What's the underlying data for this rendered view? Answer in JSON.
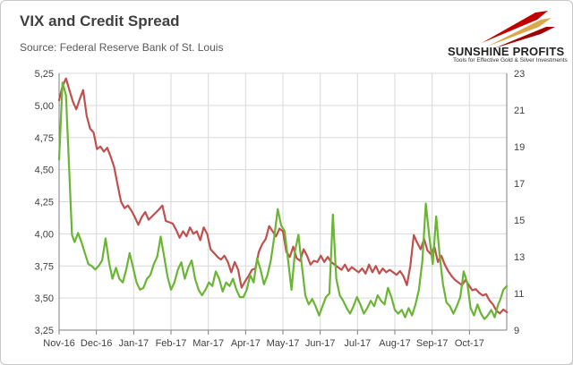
{
  "title": "VIX and Credit Spread",
  "subtitle": "Source: Federal Reserve Bank of St. Louis",
  "logo": {
    "name": "SUNSHINE PROFITS",
    "tagline": "Tools for Effective Gold & Silver Investments"
  },
  "colors": {
    "vix": "#6ab534",
    "credit_spread": "#c0504d",
    "grid": "#d9d9d9",
    "axis": "#7f7f7f"
  },
  "chart_data": {
    "type": "line",
    "x_ticks": [
      "Nov-16",
      "Dec-16",
      "Jan-17",
      "Feb-17",
      "Mar-17",
      "Apr-17",
      "May-17",
      "Jun-17",
      "Jul-17",
      "Aug-17",
      "Sep-17",
      "Oct-17"
    ],
    "y_left": {
      "ticks": [
        "3,25",
        "3,50",
        "3,75",
        "4,00",
        "4,25",
        "4,50",
        "4,75",
        "5,00",
        "5,25"
      ],
      "range": [
        3.25,
        5.25
      ]
    },
    "y_right": {
      "ticks": [
        "9",
        "11",
        "13",
        "15",
        "17",
        "19",
        "21",
        "23"
      ],
      "range": [
        9,
        23
      ]
    },
    "x_range": [
      0,
      52
    ],
    "series": [
      {
        "axis": "left",
        "values": [
          [
            0,
            5.04
          ],
          [
            0.4,
            5.15
          ],
          [
            0.8,
            5.21
          ],
          [
            1.2,
            5.12
          ],
          [
            1.6,
            5.03
          ],
          [
            2.0,
            4.97
          ],
          [
            2.4,
            5.05
          ],
          [
            2.8,
            5.12
          ],
          [
            3.2,
            4.92
          ],
          [
            3.6,
            4.82
          ],
          [
            4.0,
            4.79
          ],
          [
            4.4,
            4.66
          ],
          [
            4.8,
            4.68
          ],
          [
            5.2,
            4.64
          ],
          [
            5.6,
            4.67
          ],
          [
            6.0,
            4.6
          ],
          [
            6.4,
            4.52
          ],
          [
            6.8,
            4.38
          ],
          [
            7.2,
            4.25
          ],
          [
            7.6,
            4.2
          ],
          [
            8.0,
            4.22
          ],
          [
            8.4,
            4.18
          ],
          [
            8.8,
            4.13
          ],
          [
            9.2,
            4.07
          ],
          [
            9.6,
            4.13
          ],
          [
            10.0,
            4.17
          ],
          [
            10.4,
            4.11
          ],
          [
            11.6,
            4.19
          ],
          [
            12.0,
            4.22
          ],
          [
            12.4,
            4.1
          ],
          [
            13.2,
            4.08
          ],
          [
            13.6,
            4.03
          ],
          [
            14.0,
            3.97
          ],
          [
            14.4,
            4.02
          ],
          [
            14.8,
            3.98
          ],
          [
            15.2,
            4.05
          ],
          [
            15.6,
            4.0
          ],
          [
            16.0,
            4.02
          ],
          [
            16.4,
            3.95
          ],
          [
            16.8,
            4.05
          ],
          [
            17.2,
            4.0
          ],
          [
            17.6,
            3.88
          ],
          [
            18.0,
            3.85
          ],
          [
            18.4,
            3.82
          ],
          [
            18.8,
            3.8
          ],
          [
            19.2,
            3.83
          ],
          [
            19.6,
            3.78
          ],
          [
            20.0,
            3.7
          ],
          [
            20.4,
            3.78
          ],
          [
            20.8,
            3.72
          ],
          [
            21.2,
            3.58
          ],
          [
            21.6,
            3.63
          ],
          [
            22.0,
            3.67
          ],
          [
            22.4,
            3.72
          ],
          [
            22.8,
            3.73
          ],
          [
            23.2,
            3.86
          ],
          [
            23.6,
            3.92
          ],
          [
            24.0,
            3.96
          ],
          [
            24.4,
            4.06
          ],
          [
            24.8,
            4.02
          ],
          [
            25.2,
            3.98
          ],
          [
            25.6,
            4.04
          ],
          [
            26.0,
            4.02
          ],
          [
            26.4,
            3.86
          ],
          [
            26.8,
            3.82
          ],
          [
            27.2,
            3.9
          ],
          [
            27.6,
            3.81
          ],
          [
            28.0,
            3.79
          ],
          [
            28.4,
            3.88
          ],
          [
            28.8,
            3.83
          ],
          [
            29.2,
            3.76
          ],
          [
            29.6,
            3.79
          ],
          [
            30.0,
            3.78
          ],
          [
            30.4,
            3.83
          ],
          [
            30.8,
            3.78
          ],
          [
            31.2,
            3.82
          ],
          [
            31.6,
            3.78
          ],
          [
            32.0,
            3.76
          ],
          [
            32.4,
            3.74
          ],
          [
            32.8,
            3.72
          ],
          [
            33.2,
            3.76
          ],
          [
            33.6,
            3.71
          ],
          [
            34.0,
            3.74
          ],
          [
            34.4,
            3.72
          ],
          [
            34.8,
            3.7
          ],
          [
            35.2,
            3.73
          ],
          [
            35.6,
            3.69
          ],
          [
            36.0,
            3.76
          ],
          [
            36.4,
            3.7
          ],
          [
            36.8,
            3.75
          ],
          [
            37.2,
            3.69
          ],
          [
            37.6,
            3.73
          ],
          [
            38.0,
            3.7
          ],
          [
            38.4,
            3.72
          ],
          [
            38.8,
            3.7
          ],
          [
            39.2,
            3.68
          ],
          [
            39.6,
            3.71
          ],
          [
            40.0,
            3.67
          ],
          [
            40.4,
            3.6
          ],
          [
            40.8,
            3.75
          ],
          [
            41.2,
            3.99
          ],
          [
            41.6,
            3.93
          ],
          [
            42.0,
            3.88
          ],
          [
            42.4,
            3.96
          ],
          [
            42.8,
            3.87
          ],
          [
            43.2,
            3.84
          ],
          [
            43.6,
            3.9
          ],
          [
            44.0,
            3.78
          ],
          [
            44.4,
            3.83
          ],
          [
            44.8,
            3.76
          ],
          [
            45.2,
            3.71
          ],
          [
            45.6,
            3.67
          ],
          [
            46.0,
            3.64
          ],
          [
            46.4,
            3.62
          ],
          [
            46.8,
            3.6
          ],
          [
            47.2,
            3.64
          ],
          [
            47.6,
            3.6
          ],
          [
            48.0,
            3.56
          ],
          [
            48.4,
            3.57
          ],
          [
            48.8,
            3.54
          ],
          [
            49.2,
            3.52
          ],
          [
            49.6,
            3.53
          ],
          [
            50.0,
            3.48
          ],
          [
            50.4,
            3.45
          ],
          [
            50.8,
            3.4
          ],
          [
            51.2,
            3.38
          ],
          [
            51.6,
            3.41
          ],
          [
            52.0,
            3.39
          ]
        ]
      },
      {
        "axis": "right",
        "values": [
          [
            0,
            18.3
          ],
          [
            0.4,
            22.5
          ],
          [
            0.8,
            21.8
          ],
          [
            1.2,
            17.5
          ],
          [
            1.5,
            14.2
          ],
          [
            1.8,
            13.8
          ],
          [
            2.2,
            14.3
          ],
          [
            2.6,
            13.8
          ],
          [
            3.0,
            13.2
          ],
          [
            3.4,
            12.6
          ],
          [
            3.8,
            12.5
          ],
          [
            4.2,
            12.3
          ],
          [
            4.6,
            12.5
          ],
          [
            5.0,
            12.8
          ],
          [
            5.4,
            14.0
          ],
          [
            5.8,
            12.7
          ],
          [
            6.2,
            11.8
          ],
          [
            6.6,
            12.4
          ],
          [
            7.0,
            11.8
          ],
          [
            7.4,
            11.6
          ],
          [
            7.8,
            12.3
          ],
          [
            8.2,
            13.2
          ],
          [
            8.6,
            12.4
          ],
          [
            9.0,
            11.6
          ],
          [
            9.4,
            11.2
          ],
          [
            9.8,
            11.3
          ],
          [
            10.2,
            11.8
          ],
          [
            10.6,
            12.0
          ],
          [
            11.0,
            12.6
          ],
          [
            11.4,
            13.0
          ],
          [
            11.8,
            14.1
          ],
          [
            12.6,
            11.9
          ],
          [
            13.0,
            11.2
          ],
          [
            13.4,
            11.6
          ],
          [
            13.8,
            12.3
          ],
          [
            14.2,
            12.7
          ],
          [
            14.6,
            11.8
          ],
          [
            15.0,
            12.4
          ],
          [
            15.4,
            12.8
          ],
          [
            15.8,
            11.8
          ],
          [
            16.2,
            11.2
          ],
          [
            16.6,
            10.9
          ],
          [
            17.0,
            11.2
          ],
          [
            17.4,
            11.6
          ],
          [
            17.8,
            11.4
          ],
          [
            18.2,
            12.2
          ],
          [
            18.6,
            11.8
          ],
          [
            19.0,
            11.1
          ],
          [
            19.4,
            11.6
          ],
          [
            19.8,
            11.4
          ],
          [
            20.2,
            11.8
          ],
          [
            20.6,
            11.2
          ],
          [
            21.0,
            10.8
          ],
          [
            21.4,
            10.8
          ],
          [
            21.8,
            11.2
          ],
          [
            22.2,
            12.0
          ],
          [
            22.6,
            11.6
          ],
          [
            23.0,
            12.9
          ],
          [
            23.4,
            12.3
          ],
          [
            23.8,
            11.5
          ],
          [
            24.2,
            12.0
          ],
          [
            24.6,
            12.8
          ],
          [
            25.0,
            14.1
          ],
          [
            25.4,
            15.6
          ],
          [
            25.8,
            14.7
          ],
          [
            26.2,
            14.4
          ],
          [
            26.6,
            12.8
          ],
          [
            27.0,
            11.2
          ],
          [
            27.4,
            13.3
          ],
          [
            27.8,
            14.2
          ],
          [
            28.2,
            12.5
          ],
          [
            28.6,
            10.9
          ],
          [
            29.0,
            10.4
          ],
          [
            29.4,
            10.7
          ],
          [
            29.8,
            10.3
          ],
          [
            30.2,
            9.8
          ],
          [
            30.6,
            10.3
          ],
          [
            31.0,
            10.8
          ],
          [
            31.4,
            11.0
          ],
          [
            31.8,
            15.3
          ],
          [
            32.2,
            11.8
          ],
          [
            32.6,
            10.9
          ],
          [
            33.0,
            10.6
          ],
          [
            33.4,
            10.2
          ],
          [
            33.8,
            9.9
          ],
          [
            34.2,
            10.3
          ],
          [
            34.6,
            10.8
          ],
          [
            35.0,
            10.4
          ],
          [
            35.4,
            9.9
          ],
          [
            35.8,
            10.2
          ],
          [
            36.2,
            10.6
          ],
          [
            36.6,
            10.3
          ],
          [
            37.0,
            10.9
          ],
          [
            37.4,
            10.6
          ],
          [
            37.8,
            10.4
          ],
          [
            38.2,
            11.3
          ],
          [
            38.6,
            10.8
          ],
          [
            39.0,
            10.1
          ],
          [
            39.4,
            9.9
          ],
          [
            39.8,
            10.1
          ],
          [
            40.2,
            9.7
          ],
          [
            40.6,
            10.2
          ],
          [
            41.0,
            9.8
          ],
          [
            41.4,
            10.4
          ],
          [
            41.8,
            11.2
          ],
          [
            42.2,
            12.8
          ],
          [
            42.6,
            15.9
          ],
          [
            43.0,
            14.1
          ],
          [
            43.4,
            12.6
          ],
          [
            43.8,
            15.2
          ],
          [
            44.2,
            13.1
          ],
          [
            44.6,
            11.5
          ],
          [
            45.0,
            10.5
          ],
          [
            45.4,
            10.3
          ],
          [
            45.8,
            9.9
          ],
          [
            46.2,
            10.3
          ],
          [
            46.6,
            10.8
          ],
          [
            47.0,
            12.2
          ],
          [
            47.4,
            11.6
          ],
          [
            47.8,
            10.2
          ],
          [
            48.2,
            9.8
          ],
          [
            48.6,
            10.4
          ],
          [
            49.0,
            9.9
          ],
          [
            49.4,
            9.6
          ],
          [
            49.8,
            9.8
          ],
          [
            50.2,
            10.1
          ],
          [
            50.6,
            9.7
          ],
          [
            51.0,
            10.4
          ],
          [
            51.2,
            10.6
          ],
          [
            51.6,
            11.2
          ],
          [
            52.0,
            11.4
          ]
        ]
      }
    ],
    "grid": true
  }
}
